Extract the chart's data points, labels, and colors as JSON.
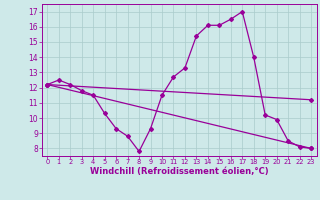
{
  "background_color": "#cee9e9",
  "line_color": "#990099",
  "grid_color": "#aacccc",
  "xlabel": "Windchill (Refroidissement éolien,°C)",
  "xlabel_fontsize": 6.0,
  "xtick_fontsize": 4.8,
  "ytick_fontsize": 5.5,
  "xlim": [
    -0.5,
    23.5
  ],
  "ylim": [
    7.5,
    17.5
  ],
  "yticks": [
    8,
    9,
    10,
    11,
    12,
    13,
    14,
    15,
    16,
    17
  ],
  "xticks": [
    0,
    1,
    2,
    3,
    4,
    5,
    6,
    7,
    8,
    9,
    10,
    11,
    12,
    13,
    14,
    15,
    16,
    17,
    18,
    19,
    20,
    21,
    22,
    23
  ],
  "line1_x": [
    0,
    1,
    2,
    3,
    4,
    5,
    6,
    7,
    8,
    9,
    10,
    11,
    12,
    13,
    14,
    15,
    16,
    17,
    18,
    19,
    20,
    21,
    22,
    23
  ],
  "line1_y": [
    12.2,
    12.5,
    12.2,
    11.8,
    11.5,
    10.3,
    9.3,
    8.8,
    7.8,
    9.3,
    11.5,
    12.7,
    13.3,
    15.4,
    16.1,
    16.1,
    16.5,
    17.0,
    14.0,
    10.2,
    9.9,
    8.5,
    8.1,
    8.0
  ],
  "line2_x": [
    0,
    23
  ],
  "line2_y": [
    12.2,
    8.0
  ],
  "line3_x": [
    0,
    23
  ],
  "line3_y": [
    12.2,
    11.2
  ],
  "marker": "D",
  "markersize": 2.0,
  "linewidth": 0.9
}
